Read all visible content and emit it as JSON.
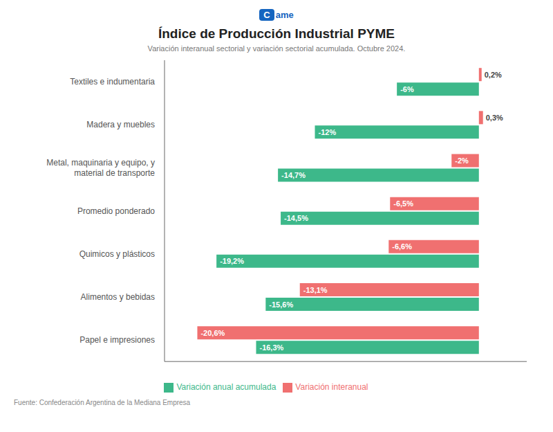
{
  "chart_data": {
    "type": "bar",
    "orientation": "horizontal",
    "title": "Índice de Producción Industrial PYME",
    "subtitle": "Variación interanual sectorial y variación sectorial acumulada. Octubre 2024.",
    "annotations": [
      "Fuente: Confederación Argentina de la Mediana Empresa",
      "C",
      "ame"
    ],
    "categories": [
      "Textiles e indumentaria",
      "Madera y muebles",
      "Metal, maquinaria y equipo, y material de transporte",
      "Promedio ponderado",
      "Quimicos y plásticos",
      "Alimentos y bebidas",
      "Papel e impresiones"
    ],
    "series": [
      {
        "name": "Variación interanual",
        "color": "#F07070",
        "values": [
          0.2,
          0.3,
          -2.0,
          -6.5,
          -6.6,
          -13.1,
          -20.6
        ],
        "value_labels": [
          "0,2%",
          "0,3%",
          "-2%",
          "-6,5%",
          "-6,6%",
          "-13,1%",
          "-20,6%"
        ]
      },
      {
        "name": "Variación anual acumulada",
        "color": "#3DB88A",
        "values": [
          -6.0,
          -12.0,
          -14.7,
          -14.5,
          -19.2,
          -15.6,
          -16.3
        ],
        "value_labels": [
          "-6%",
          "-12%",
          "-14,7%",
          "-14,5%",
          "-19,2%",
          "-15,6%",
          "-16,3%"
        ]
      }
    ],
    "xlim": [
      -23,
      3.5
    ],
    "grid": false,
    "legend": "bottom",
    "data_labels": true,
    "tick_labels": "y"
  }
}
